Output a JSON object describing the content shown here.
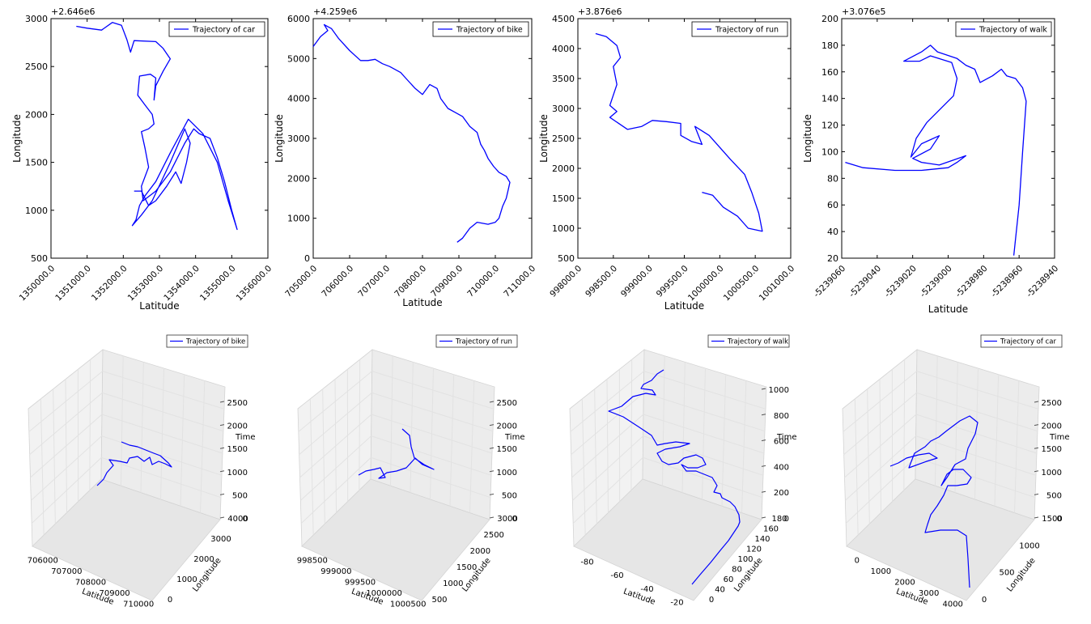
{
  "colors": {
    "line": "#0000ff",
    "axis": "#000000",
    "pane": "#f2f2f2",
    "grid": "#e2e2e2"
  },
  "chart_data": [
    {
      "type": "line",
      "xlabel": "Latitude",
      "ylabel": "Longitude",
      "offset_label": "+2.646e6",
      "legend": "Trajectory of car",
      "legend_position": "top-right",
      "xlim": [
        1350000,
        1356000
      ],
      "ylim": [
        500,
        3000
      ],
      "xticks": [
        1350000,
        1351000,
        1352000,
        1353000,
        1354000,
        1355000,
        1356000
      ],
      "xtick_labels": [
        "1350000.0",
        "1351000.0",
        "1352000.0",
        "1353000.0",
        "1354000.0",
        "1355000.0",
        "1356000.0"
      ],
      "yticks": [
        500,
        1000,
        1500,
        2000,
        2500,
        3000
      ],
      "ytick_labels": [
        "500",
        "1000",
        "1500",
        "2000",
        "2500",
        "3000"
      ],
      "series": [
        {
          "values": [
            [
              1350700,
              2920
            ],
            [
              1351000,
              2900
            ],
            [
              1351400,
              2880
            ],
            [
              1351700,
              2960
            ],
            [
              1351950,
              2930
            ],
            [
              1352100,
              2780
            ],
            [
              1352200,
              2650
            ],
            [
              1352300,
              2770
            ],
            [
              1352900,
              2760
            ],
            [
              1353100,
              2690
            ],
            [
              1353300,
              2580
            ],
            [
              1353100,
              2450
            ],
            [
              1352900,
              2300
            ],
            [
              1352850,
              2150
            ],
            [
              1352900,
              2380
            ],
            [
              1352750,
              2420
            ],
            [
              1352450,
              2400
            ],
            [
              1352400,
              2200
            ],
            [
              1352600,
              2100
            ],
            [
              1352800,
              2000
            ],
            [
              1352850,
              1900
            ],
            [
              1352700,
              1850
            ],
            [
              1352500,
              1820
            ],
            [
              1352600,
              1650
            ],
            [
              1352700,
              1450
            ],
            [
              1352500,
              1250
            ],
            [
              1352550,
              1100
            ],
            [
              1352900,
              1200
            ],
            [
              1353300,
              1400
            ],
            [
              1353700,
              1700
            ],
            [
              1353950,
              1850
            ],
            [
              1354100,
              1800
            ],
            [
              1354400,
              1750
            ],
            [
              1354600,
              1550
            ],
            [
              1354800,
              1300
            ],
            [
              1355000,
              1000
            ],
            [
              1355150,
              800
            ],
            [
              1354900,
              1100
            ],
            [
              1354600,
              1500
            ],
            [
              1354200,
              1800
            ],
            [
              1353800,
              1950
            ],
            [
              1353300,
              1600
            ],
            [
              1352900,
              1300
            ],
            [
              1352600,
              1150
            ],
            [
              1352450,
              1050
            ],
            [
              1352350,
              900
            ],
            [
              1352250,
              840
            ],
            [
              1352500,
              950
            ],
            [
              1352800,
              1100
            ],
            [
              1353300,
              1500
            ],
            [
              1353700,
              1850
            ],
            [
              1353850,
              1700
            ],
            [
              1353750,
              1500
            ],
            [
              1353600,
              1280
            ],
            [
              1353450,
              1400
            ],
            [
              1353200,
              1250
            ],
            [
              1352900,
              1100
            ],
            [
              1352700,
              1050
            ],
            [
              1352500,
              1200
            ],
            [
              1352300,
              1200
            ]
          ]
        }
      ]
    },
    {
      "type": "line",
      "xlabel": "Latitude",
      "ylabel": "Longitude",
      "offset_label": "+4.259e6",
      "legend": "Trajectory of bike",
      "legend_position": "top-right",
      "xlim": [
        705000,
        711000
      ],
      "ylim": [
        0,
        6000
      ],
      "xticks": [
        705000,
        706000,
        707000,
        708000,
        709000,
        710000,
        711000
      ],
      "xtick_labels": [
        "705000.0",
        "706000.0",
        "707000.0",
        "708000.0",
        "709000.0",
        "710000.0",
        "711000.0"
      ],
      "yticks": [
        0,
        1000,
        2000,
        3000,
        4000,
        5000,
        6000
      ],
      "ytick_labels": [
        "0",
        "1000",
        "2000",
        "3000",
        "4000",
        "5000",
        "6000"
      ],
      "series": [
        {
          "values": [
            [
              705000,
              5300
            ],
            [
              705200,
              5550
            ],
            [
              705400,
              5700
            ],
            [
              705300,
              5850
            ],
            [
              705500,
              5750
            ],
            [
              705700,
              5500
            ],
            [
              706000,
              5200
            ],
            [
              706300,
              4950
            ],
            [
              706500,
              4950
            ],
            [
              706700,
              4980
            ],
            [
              706900,
              4870
            ],
            [
              707100,
              4800
            ],
            [
              707400,
              4650
            ],
            [
              707600,
              4450
            ],
            [
              707800,
              4250
            ],
            [
              708000,
              4100
            ],
            [
              708200,
              4350
            ],
            [
              708400,
              4250
            ],
            [
              708500,
              4000
            ],
            [
              708700,
              3750
            ],
            [
              708900,
              3650
            ],
            [
              709100,
              3550
            ],
            [
              709300,
              3300
            ],
            [
              709500,
              3150
            ],
            [
              709600,
              2850
            ],
            [
              709700,
              2700
            ],
            [
              709800,
              2500
            ],
            [
              709950,
              2300
            ],
            [
              710100,
              2150
            ],
            [
              710300,
              2050
            ],
            [
              710400,
              1900
            ],
            [
              710350,
              1700
            ],
            [
              710300,
              1500
            ],
            [
              710200,
              1300
            ],
            [
              710100,
              1000
            ],
            [
              710000,
              900
            ],
            [
              709800,
              850
            ],
            [
              709500,
              900
            ],
            [
              709300,
              750
            ],
            [
              709100,
              500
            ],
            [
              708950,
              400
            ]
          ]
        }
      ]
    },
    {
      "type": "line",
      "xlabel": "Latitude",
      "ylabel": "Longitude",
      "offset_label": "+3.876e6",
      "legend": "Trajectory of run",
      "legend_position": "top-right",
      "xlim": [
        998000,
        1001000
      ],
      "ylim": [
        500,
        4500
      ],
      "xticks": [
        998000,
        998500,
        999000,
        999500,
        1000000,
        1000500,
        1001000
      ],
      "xtick_labels": [
        "998000.0",
        "998500.0",
        "999000.0",
        "999500.0",
        "1000000.0",
        "1000500.0",
        "1001000.0"
      ],
      "yticks": [
        500,
        1000,
        1500,
        2000,
        2500,
        3000,
        3500,
        4000,
        4500
      ],
      "ytick_labels": [
        "500",
        "1000",
        "1500",
        "2000",
        "2500",
        "3000",
        "3500",
        "4000",
        "4500"
      ],
      "series": [
        {
          "values": [
            [
              998250,
              4250
            ],
            [
              998400,
              4200
            ],
            [
              998550,
              4050
            ],
            [
              998600,
              3850
            ],
            [
              998500,
              3700
            ],
            [
              998550,
              3400
            ],
            [
              998450,
              3050
            ],
            [
              998550,
              2950
            ],
            [
              998450,
              2850
            ],
            [
              998700,
              2650
            ],
            [
              998900,
              2700
            ],
            [
              999050,
              2800
            ],
            [
              999250,
              2780
            ],
            [
              999450,
              2750
            ],
            [
              999450,
              2550
            ],
            [
              999600,
              2450
            ],
            [
              999750,
              2400
            ],
            [
              999650,
              2700
            ],
            [
              999850,
              2550
            ],
            [
              1000000,
              2350
            ],
            [
              1000150,
              2150
            ],
            [
              1000350,
              1900
            ],
            [
              1000450,
              1600
            ],
            [
              1000550,
              1250
            ],
            [
              1000600,
              950
            ],
            [
              1000400,
              1000
            ],
            [
              1000250,
              1200
            ],
            [
              1000050,
              1350
            ],
            [
              999900,
              1550
            ],
            [
              999750,
              1600
            ]
          ]
        }
      ]
    },
    {
      "type": "line",
      "xlabel": "Latitude",
      "ylabel": "Longitude",
      "offset_label": "+3.076e5",
      "legend": "Trajectory of walk",
      "legend_position": "top-right",
      "xlim": [
        -5239060,
        -5238940
      ],
      "ylim": [
        20,
        200
      ],
      "xticks": [
        -5239060,
        -5239040,
        -5239020,
        -5239000,
        -5238980,
        -5238960,
        -5238940
      ],
      "xtick_labels": [
        "-5239060",
        "-5239040",
        "-5239020",
        "-5239000",
        "-5238980",
        "-5238960",
        "-5238940"
      ],
      "yticks": [
        20,
        40,
        60,
        80,
        100,
        120,
        140,
        160,
        180,
        200
      ],
      "ytick_labels": [
        "20",
        "40",
        "60",
        "80",
        "100",
        "120",
        "140",
        "160",
        "180",
        "200"
      ],
      "series": [
        {
          "values": [
            [
              -5239058,
              92
            ],
            [
              -5239048,
              88
            ],
            [
              -5239030,
              86
            ],
            [
              -5239015,
              86
            ],
            [
              -5239000,
              88
            ],
            [
              -5238995,
              92
            ],
            [
              -5238990,
              97
            ],
            [
              -5239005,
              90
            ],
            [
              -5239015,
              92
            ],
            [
              -5239020,
              95
            ],
            [
              -5239010,
              102
            ],
            [
              -5239005,
              112
            ],
            [
              -5239015,
              106
            ],
            [
              -5239021,
              96
            ],
            [
              -5239018,
              110
            ],
            [
              -5239012,
              122
            ],
            [
              -5238997,
              142
            ],
            [
              -5238995,
              155
            ],
            [
              -5238998,
              167
            ],
            [
              -5239010,
              172
            ],
            [
              -5239016,
              168
            ],
            [
              -5239025,
              168
            ],
            [
              -5239015,
              175
            ],
            [
              -5239010,
              180
            ],
            [
              -5239006,
              175
            ],
            [
              -5238995,
              170
            ],
            [
              -5238990,
              165
            ],
            [
              -5238985,
              162
            ],
            [
              -5238982,
              152
            ],
            [
              -5238975,
              157
            ],
            [
              -5238970,
              162
            ],
            [
              -5238967,
              157
            ],
            [
              -5238962,
              155
            ],
            [
              -5238958,
              148
            ],
            [
              -5238956,
              138
            ],
            [
              -5238958,
              100
            ],
            [
              -5238960,
              60
            ],
            [
              -5238963,
              22
            ]
          ]
        }
      ]
    },
    {
      "type": "line3d",
      "xlabel": "Latitude",
      "ylabel": "Longitude",
      "zlabel": "Time",
      "legend": "Trajectory of bike",
      "legend_position": "top-right",
      "xtick_labels": [
        "706000",
        "707000",
        "708000",
        "709000",
        "710000"
      ],
      "ytick_labels": [
        "0",
        "1000",
        "2000",
        "3000",
        "4000"
      ],
      "ztick_labels": [
        "0",
        "500",
        "1000",
        "1500",
        "2000",
        "2500"
      ]
    },
    {
      "type": "line3d",
      "xlabel": "Latitude",
      "ylabel": "Longitude",
      "zlabel": "Time",
      "legend": "Trajectory of run",
      "legend_position": "top-right",
      "xtick_labels": [
        "998500",
        "999000",
        "999500",
        "1000000",
        "1000500"
      ],
      "ytick_labels": [
        "500",
        "1000",
        "1500",
        "2000",
        "2500",
        "3000"
      ],
      "ztick_labels": [
        "0",
        "500",
        "1000",
        "1500",
        "2000",
        "2500"
      ]
    },
    {
      "type": "line3d",
      "xlabel": "Latitude",
      "ylabel": "Longitude",
      "zlabel": "Time",
      "legend": "Trajectory of walk",
      "legend_position": "top-right",
      "xtick_labels": [
        "-80",
        "-60",
        "-40",
        "-20"
      ],
      "ytick_labels": [
        "0",
        "40",
        "60",
        "80",
        "100",
        "120",
        "140",
        "160",
        "180"
      ],
      "ztick_labels": [
        "0",
        "200",
        "400",
        "600",
        "800",
        "1000"
      ]
    },
    {
      "type": "line3d",
      "xlabel": "Latitude",
      "ylabel": "Longitude",
      "zlabel": "Time",
      "legend": "Trajectory of car",
      "legend_position": "top-right",
      "xtick_labels": [
        "0",
        "1000",
        "2000",
        "3000",
        "4000"
      ],
      "ytick_labels": [
        "0",
        "500",
        "1000",
        "1500"
      ],
      "ztick_labels": [
        "0",
        "500",
        "1000",
        "1500",
        "2000",
        "2500"
      ]
    }
  ]
}
